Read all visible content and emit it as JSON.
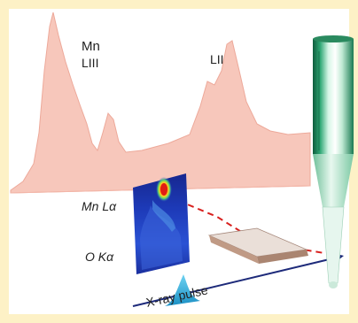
{
  "labels": {
    "mn": "Mn",
    "mn_l3": "LIII",
    "l2": "LII",
    "mn_la": "Mn Lα",
    "o_ka": "O Kα",
    "pulse": "X-ray pulse"
  },
  "colors": {
    "frame": "#fdf1c6",
    "spectrum_fill": "#f7c7bb",
    "spectrum_edge": "#eda99a",
    "beam": "#1d2a7a",
    "pulse": "#2aa9d6",
    "dashed_ray": "#d8201e",
    "detector": "#1b2f9c",
    "sample_top": "#eadfd8",
    "sample_side": "#c09a85",
    "nozzle": "#1f8f5f"
  }
}
